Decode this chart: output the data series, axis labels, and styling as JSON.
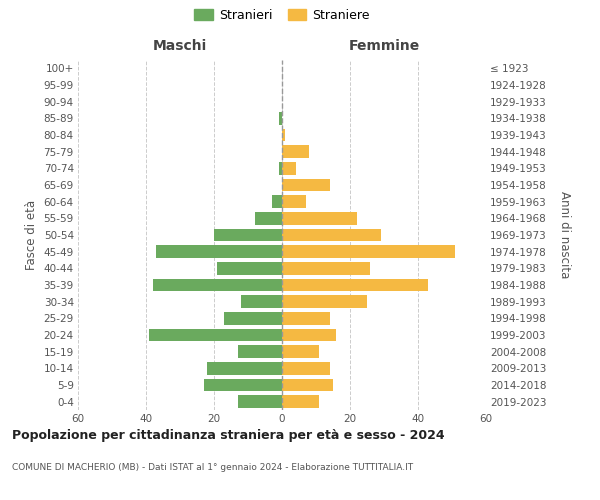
{
  "age_groups": [
    "0-4",
    "5-9",
    "10-14",
    "15-19",
    "20-24",
    "25-29",
    "30-34",
    "35-39",
    "40-44",
    "45-49",
    "50-54",
    "55-59",
    "60-64",
    "65-69",
    "70-74",
    "75-79",
    "80-84",
    "85-89",
    "90-94",
    "95-99",
    "100+"
  ],
  "birth_years": [
    "2019-2023",
    "2014-2018",
    "2009-2013",
    "2004-2008",
    "1999-2003",
    "1994-1998",
    "1989-1993",
    "1984-1988",
    "1979-1983",
    "1974-1978",
    "1969-1973",
    "1964-1968",
    "1959-1963",
    "1954-1958",
    "1949-1953",
    "1944-1948",
    "1939-1943",
    "1934-1938",
    "1929-1933",
    "1924-1928",
    "≤ 1923"
  ],
  "males": [
    13,
    23,
    22,
    13,
    39,
    17,
    12,
    38,
    19,
    37,
    20,
    8,
    3,
    0,
    1,
    0,
    0,
    1,
    0,
    0,
    0
  ],
  "females": [
    11,
    15,
    14,
    11,
    16,
    14,
    25,
    43,
    26,
    51,
    29,
    22,
    7,
    14,
    4,
    8,
    1,
    0,
    0,
    0,
    0
  ],
  "male_color": "#6aaa5e",
  "female_color": "#f5b942",
  "background_color": "#ffffff",
  "grid_color": "#cccccc",
  "title": "Popolazione per cittadinanza straniera per età e sesso - 2024",
  "subtitle": "COMUNE DI MACHERIO (MB) - Dati ISTAT al 1° gennaio 2024 - Elaborazione TUTTITALIA.IT",
  "xlabel_left": "Maschi",
  "xlabel_right": "Femmine",
  "ylabel_left": "Fasce di età",
  "ylabel_right": "Anni di nascita",
  "legend_male": "Stranieri",
  "legend_female": "Straniere",
  "xlim": 60,
  "bar_height": 0.75
}
